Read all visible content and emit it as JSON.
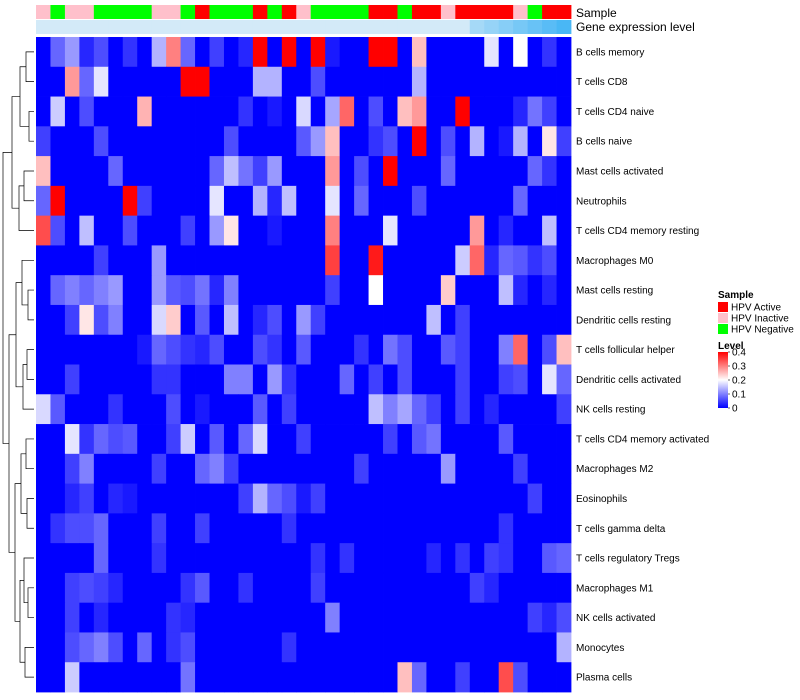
{
  "chart_data": {
    "type": "heatmap",
    "title": "",
    "annotation_labels": [
      "Sample",
      "Gene expression level"
    ],
    "legend_sample": {
      "title": "Sample",
      "entries": [
        {
          "label": "HPV Active",
          "color": "#ff0000"
        },
        {
          "label": "HPV Inactive",
          "color": "#ffc0cb"
        },
        {
          "label": "HPV Negative",
          "color": "#00ff00"
        }
      ]
    },
    "legend_level": {
      "title": "Level",
      "ticks": [
        "0.4",
        "0.3",
        "0.2",
        "0.1",
        "0"
      ],
      "tick_values": [
        0.4,
        0.3,
        0.2,
        0.1,
        0
      ],
      "range": [
        0,
        0.4
      ],
      "colors": [
        "#0000ff",
        "#ffffff",
        "#ff0000"
      ]
    },
    "sample_groups": [
      "Inactive",
      "Negative",
      "Inactive",
      "Inactive",
      "Negative",
      "Negative",
      "Negative",
      "Negative",
      "Inactive",
      "Inactive",
      "Negative",
      "Active",
      "Negative",
      "Negative",
      "Negative",
      "Active",
      "Negative",
      "Active",
      "Inactive",
      "Negative",
      "Negative",
      "Negative",
      "Negative",
      "Active",
      "Active",
      "Negative",
      "Active",
      "Active",
      "Inactive",
      "Active",
      "Active",
      "Active",
      "Active",
      "Inactive",
      "Negative",
      "Active",
      "Active"
    ],
    "expression_level": [
      0.0,
      0.0,
      0.0,
      0.0,
      0.0,
      0.0,
      0.0,
      0.0,
      0.0,
      0.0,
      0.0,
      0.0,
      0.0,
      0.0,
      0.0,
      0.0,
      0.0,
      0.0,
      0.0,
      0.0,
      0.0,
      0.0,
      0.0,
      0.0,
      0.0,
      0.0,
      0.0,
      0.0,
      0.0,
      0.0,
      0.3,
      0.4,
      0.5,
      0.6,
      0.7,
      0.8,
      0.9
    ],
    "rows": [
      "B cells memory",
      "T cells CD8",
      "T cells CD4 naive",
      "B cells naive",
      "Mast cells activated",
      "Neutrophils",
      "T cells CD4 memory resting",
      "Macrophages M0",
      "Mast cells resting",
      "Dendritic cells resting",
      "T cells follicular helper",
      "Dendritic cells activated",
      "NK cells resting",
      "T cells CD4 memory activated",
      "Macrophages M2",
      "Eosinophils",
      "T cells gamma delta",
      "T cells regulatory  Tregs",
      "Macrophages M1",
      "NK cells activated",
      "Monocytes",
      "Plasma cells"
    ],
    "values": [
      [
        0.0,
        0.08,
        0.12,
        0.03,
        0.06,
        0.0,
        0.04,
        0.0,
        0.14,
        0.3,
        0.08,
        0.0,
        0.05,
        0.0,
        0.03,
        0.4,
        0.0,
        0.4,
        0.0,
        0.4,
        0.02,
        0.0,
        0.0,
        0.4,
        0.4,
        0.0,
        0.25,
        0.0,
        0.0,
        0.0,
        0.0,
        0.18,
        0.0,
        0.2,
        0.0,
        0.04,
        0.0
      ],
      [
        0.0,
        0.0,
        0.28,
        0.08,
        0.18,
        0.0,
        0.0,
        0.0,
        0.0,
        0.0,
        0.4,
        0.4,
        0.0,
        0.0,
        0.0,
        0.14,
        0.14,
        0.0,
        0.0,
        0.06,
        0.0,
        0.0,
        0.0,
        0.0,
        0.0,
        0.0,
        0.14,
        0.0,
        0.0,
        0.0,
        0.0,
        0.0,
        0.0,
        0.0,
        0.0,
        0.0,
        0.0
      ],
      [
        0.0,
        0.16,
        0.0,
        0.06,
        0.0,
        0.0,
        0.0,
        0.26,
        0.0,
        0.0,
        0.0,
        0.0,
        0.0,
        0.0,
        0.04,
        0.0,
        0.02,
        0.0,
        0.17,
        0.0,
        0.13,
        0.32,
        0.0,
        0.06,
        0.0,
        0.25,
        0.28,
        0.0,
        0.0,
        0.4,
        0.0,
        0.0,
        0.0,
        0.03,
        0.09,
        0.05,
        0.0
      ],
      [
        0.05,
        0.0,
        0.0,
        0.0,
        0.06,
        0.0,
        0.0,
        0.0,
        0.0,
        0.0,
        0.0,
        0.0,
        0.0,
        0.06,
        0.0,
        0.0,
        0.0,
        0.0,
        0.07,
        0.12,
        0.25,
        0.0,
        0.0,
        0.04,
        0.06,
        0.0,
        0.4,
        0.0,
        0.06,
        0.0,
        0.14,
        0.0,
        0.02,
        0.14,
        0.0,
        0.22,
        0.05
      ],
      [
        0.25,
        0.0,
        0.0,
        0.0,
        0.0,
        0.08,
        0.0,
        0.0,
        0.0,
        0.0,
        0.0,
        0.0,
        0.08,
        0.15,
        0.09,
        0.05,
        0.12,
        0.0,
        0.0,
        0.0,
        0.28,
        0.0,
        0.06,
        0.0,
        0.4,
        0.0,
        0.0,
        0.0,
        0.08,
        0.0,
        0.0,
        0.0,
        0.0,
        0.0,
        0.08,
        0.04,
        0.0
      ],
      [
        0.08,
        0.4,
        0.0,
        0.0,
        0.0,
        0.0,
        0.4,
        0.05,
        0.0,
        0.0,
        0.0,
        0.0,
        0.18,
        0.0,
        0.0,
        0.14,
        0.03,
        0.15,
        0.0,
        0.0,
        0.18,
        0.0,
        0.08,
        0.0,
        0.0,
        0.0,
        0.06,
        0.0,
        0.0,
        0.0,
        0.0,
        0.0,
        0.0,
        0.08,
        0.0,
        0.0,
        0.0
      ],
      [
        0.34,
        0.06,
        0.0,
        0.15,
        0.0,
        0.0,
        0.06,
        0.0,
        0.0,
        0.0,
        0.05,
        0.0,
        0.12,
        0.22,
        0.0,
        0.0,
        0.02,
        0.0,
        0.0,
        0.0,
        0.3,
        0.0,
        0.0,
        0.0,
        0.18,
        0.0,
        0.0,
        0.0,
        0.0,
        0.0,
        0.28,
        0.0,
        0.03,
        0.0,
        0.0,
        0.15,
        0.0
      ],
      [
        0.0,
        0.0,
        0.0,
        0.0,
        0.05,
        0.0,
        0.0,
        0.0,
        0.12,
        0.0,
        0.0,
        0.0,
        0.0,
        0.0,
        0.0,
        0.0,
        0.0,
        0.0,
        0.0,
        0.0,
        0.35,
        0.0,
        0.0,
        0.38,
        0.0,
        0.0,
        0.0,
        0.0,
        0.0,
        0.16,
        0.32,
        0.03,
        0.08,
        0.07,
        0.04,
        0.06,
        0.0
      ],
      [
        0.0,
        0.08,
        0.1,
        0.08,
        0.1,
        0.12,
        0.0,
        0.0,
        0.12,
        0.07,
        0.06,
        0.09,
        0.03,
        0.1,
        0.0,
        0.0,
        0.0,
        0.0,
        0.0,
        0.0,
        0.05,
        0.0,
        0.0,
        0.2,
        0.0,
        0.0,
        0.0,
        0.0,
        0.24,
        0.0,
        0.0,
        0.0,
        0.15,
        0.03,
        0.0,
        0.03,
        0.0
      ],
      [
        0.0,
        0.0,
        0.05,
        0.22,
        0.06,
        0.1,
        0.0,
        0.0,
        0.17,
        0.24,
        0.0,
        0.07,
        0.0,
        0.15,
        0.0,
        0.03,
        0.06,
        0.0,
        0.12,
        0.05,
        0.0,
        0.0,
        0.0,
        0.0,
        0.0,
        0.0,
        0.0,
        0.15,
        0.0,
        0.05,
        0.0,
        0.0,
        0.0,
        0.0,
        0.0,
        0.0,
        0.0
      ],
      [
        0.0,
        0.0,
        0.0,
        0.0,
        0.0,
        0.0,
        0.0,
        0.02,
        0.08,
        0.06,
        0.04,
        0.03,
        0.06,
        0.0,
        0.0,
        0.06,
        0.04,
        0.0,
        0.07,
        0.0,
        0.0,
        0.0,
        0.04,
        0.0,
        0.09,
        0.06,
        0.0,
        0.0,
        0.07,
        0.05,
        0.0,
        0.0,
        0.1,
        0.32,
        0.0,
        0.06,
        0.25
      ],
      [
        0.0,
        0.0,
        0.05,
        0.0,
        0.0,
        0.0,
        0.0,
        0.0,
        0.04,
        0.04,
        0.0,
        0.0,
        0.0,
        0.1,
        0.1,
        0.0,
        0.12,
        0.04,
        0.0,
        0.0,
        0.0,
        0.08,
        0.0,
        0.05,
        0.0,
        0.06,
        0.0,
        0.0,
        0.0,
        0.05,
        0.0,
        0.0,
        0.05,
        0.06,
        0.0,
        0.18,
        0.08
      ],
      [
        0.17,
        0.07,
        0.0,
        0.0,
        0.0,
        0.04,
        0.0,
        0.0,
        0.0,
        0.06,
        0.0,
        0.02,
        0.0,
        0.0,
        0.0,
        0.07,
        0.0,
        0.05,
        0.0,
        0.0,
        0.0,
        0.0,
        0.0,
        0.15,
        0.1,
        0.13,
        0.08,
        0.05,
        0.0,
        0.05,
        0.0,
        0.03,
        0.0,
        0.0,
        0.0,
        0.0,
        0.05
      ],
      [
        0.0,
        0.0,
        0.18,
        0.04,
        0.08,
        0.06,
        0.07,
        0.0,
        0.0,
        0.05,
        0.16,
        0.0,
        0.07,
        0.0,
        0.08,
        0.17,
        0.0,
        0.0,
        0.05,
        0.0,
        0.0,
        0.0,
        0.0,
        0.0,
        0.05,
        0.0,
        0.07,
        0.09,
        0.0,
        0.0,
        0.0,
        0.0,
        0.07,
        0.0,
        0.0,
        0.0,
        0.0
      ],
      [
        0.0,
        0.0,
        0.05,
        0.1,
        0.0,
        0.0,
        0.0,
        0.0,
        0.05,
        0.0,
        0.0,
        0.08,
        0.1,
        0.05,
        0.0,
        0.0,
        0.0,
        0.0,
        0.0,
        0.0,
        0.0,
        0.0,
        0.05,
        0.0,
        0.0,
        0.0,
        0.0,
        0.0,
        0.12,
        0.0,
        0.0,
        0.0,
        0.0,
        0.05,
        0.0,
        0.0,
        0.0
      ],
      [
        0.0,
        0.0,
        0.03,
        0.05,
        0.0,
        0.03,
        0.02,
        0.0,
        0.0,
        0.0,
        0.0,
        0.0,
        0.0,
        0.0,
        0.05,
        0.14,
        0.08,
        0.06,
        0.02,
        0.05,
        0.0,
        0.0,
        0.0,
        0.0,
        0.0,
        0.0,
        0.0,
        0.0,
        0.0,
        0.0,
        0.0,
        0.0,
        0.0,
        0.0,
        0.05,
        0.0,
        0.0
      ],
      [
        0.0,
        0.04,
        0.06,
        0.06,
        0.08,
        0.0,
        0.0,
        0.0,
        0.05,
        0.0,
        0.0,
        0.05,
        0.0,
        0.0,
        0.0,
        0.0,
        0.0,
        0.04,
        0.0,
        0.0,
        0.0,
        0.0,
        0.0,
        0.0,
        0.0,
        0.0,
        0.0,
        0.0,
        0.0,
        0.0,
        0.0,
        0.0,
        0.04,
        0.0,
        0.0,
        0.0,
        0.0
      ],
      [
        0.0,
        0.0,
        0.0,
        0.0,
        0.08,
        0.0,
        0.0,
        0.0,
        0.04,
        0.0,
        0.0,
        0.0,
        0.0,
        0.0,
        0.0,
        0.0,
        0.0,
        0.0,
        0.0,
        0.04,
        0.0,
        0.04,
        0.0,
        0.0,
        0.0,
        0.0,
        0.0,
        0.03,
        0.0,
        0.04,
        0.0,
        0.05,
        0.04,
        0.0,
        0.0,
        0.07,
        0.08
      ],
      [
        0.0,
        0.0,
        0.05,
        0.06,
        0.05,
        0.03,
        0.0,
        0.0,
        0.0,
        0.0,
        0.04,
        0.07,
        0.0,
        0.0,
        0.04,
        0.0,
        0.0,
        0.0,
        0.0,
        0.05,
        0.0,
        0.0,
        0.0,
        0.0,
        0.0,
        0.0,
        0.0,
        0.0,
        0.0,
        0.0,
        0.05,
        0.03,
        0.0,
        0.0,
        0.0,
        0.0,
        0.0
      ],
      [
        0.0,
        0.0,
        0.05,
        0.0,
        0.03,
        0.0,
        0.0,
        0.0,
        0.0,
        0.04,
        0.03,
        0.0,
        0.0,
        0.0,
        0.0,
        0.0,
        0.0,
        0.0,
        0.0,
        0.0,
        0.1,
        0.0,
        0.0,
        0.0,
        0.0,
        0.0,
        0.0,
        0.0,
        0.0,
        0.0,
        0.0,
        0.0,
        0.0,
        0.0,
        0.05,
        0.03,
        0.06
      ],
      [
        0.0,
        0.0,
        0.06,
        0.08,
        0.1,
        0.06,
        0.0,
        0.08,
        0.0,
        0.04,
        0.06,
        0.0,
        0.0,
        0.0,
        0.0,
        0.0,
        0.0,
        0.04,
        0.0,
        0.0,
        0.0,
        0.0,
        0.0,
        0.0,
        0.0,
        0.0,
        0.0,
        0.0,
        0.0,
        0.0,
        0.0,
        0.0,
        0.0,
        0.0,
        0.0,
        0.0,
        0.14
      ],
      [
        0.0,
        0.0,
        0.16,
        0.0,
        0.0,
        0.0,
        0.0,
        0.0,
        0.0,
        0.0,
        0.09,
        0.0,
        0.0,
        0.0,
        0.0,
        0.0,
        0.0,
        0.0,
        0.0,
        0.0,
        0.0,
        0.0,
        0.0,
        0.0,
        0.0,
        0.25,
        0.08,
        0.0,
        0.0,
        0.05,
        0.0,
        0.0,
        0.34,
        0.06,
        0.0,
        0.0,
        0.0
      ]
    ]
  }
}
